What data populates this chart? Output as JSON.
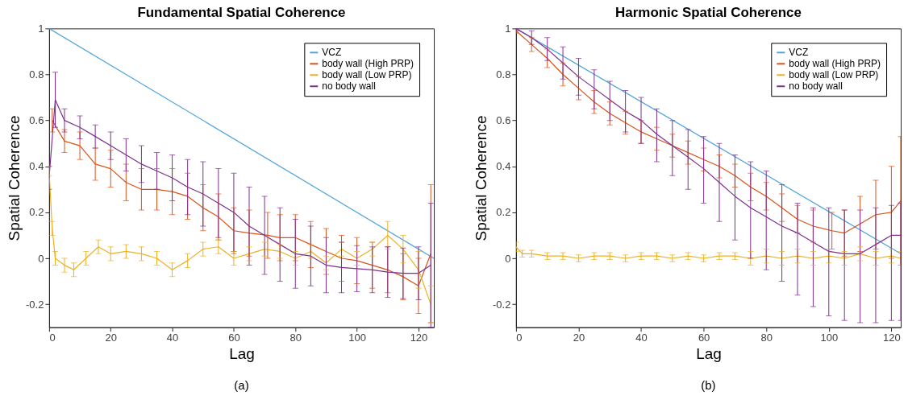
{
  "chart_data": [
    {
      "type": "line",
      "title": "Fundamental Spatial Coherence",
      "xlabel": "Lag",
      "ylabel": "Spatial Coherence",
      "xlim": [
        0,
        125
      ],
      "xticks": [
        0,
        20,
        40,
        60,
        80,
        100,
        120
      ],
      "ylim": [
        -0.3,
        1
      ],
      "yticks": [
        -0.2,
        0,
        0.2,
        0.4,
        0.6,
        0.8,
        1
      ],
      "grid": false,
      "legend": "top right",
      "annotations": [
        "(a)"
      ],
      "series": [
        {
          "name": "VCZ",
          "color": "#4da3db",
          "x": [
            0,
            125
          ],
          "values": [
            1,
            0
          ]
        },
        {
          "name": "body wall (High PRP)",
          "color": "#d95319",
          "x": [
            1,
            5,
            10,
            15,
            20,
            25,
            30,
            35,
            40,
            45,
            50,
            55,
            60,
            65,
            71,
            75,
            80,
            85,
            90,
            95,
            100,
            105,
            110,
            115,
            120,
            124
          ],
          "values": [
            0.6,
            0.51,
            0.49,
            0.41,
            0.39,
            0.33,
            0.3,
            0.3,
            0.29,
            0.27,
            0.22,
            0.18,
            0.12,
            0.11,
            0.1,
            0.09,
            0.09,
            0.06,
            0.03,
            0.0,
            -0.01,
            -0.03,
            -0.05,
            -0.08,
            -0.12,
            0.02
          ],
          "errors": [
            0.05,
            0.05,
            0.06,
            0.07,
            0.08,
            0.08,
            0.09,
            0.09,
            0.1,
            0.1,
            0.1,
            0.1,
            0.1,
            0.1,
            0.1,
            0.1,
            0.1,
            0.1,
            0.1,
            0.1,
            0.1,
            0.1,
            0.1,
            0.1,
            0.12,
            0.3
          ]
        },
        {
          "name": "body wall (Low PRP)",
          "color": "#edb120",
          "x": [
            0,
            1,
            2,
            5,
            8,
            12,
            16,
            20,
            25,
            30,
            35,
            40,
            45,
            50,
            55,
            60,
            65,
            70,
            75,
            80,
            85,
            90,
            95,
            100,
            105,
            110,
            115,
            120,
            124
          ],
          "values": [
            0.38,
            0.13,
            0.0,
            -0.03,
            -0.05,
            0.0,
            0.05,
            0.02,
            0.03,
            0.02,
            0.0,
            -0.05,
            -0.01,
            0.04,
            0.05,
            0.0,
            0.02,
            0.04,
            0.03,
            0.0,
            0.03,
            -0.02,
            0.04,
            0.0,
            0.04,
            0.1,
            0.04,
            -0.05,
            -0.2
          ],
          "errors": [
            0.02,
            0.03,
            0.03,
            0.03,
            0.03,
            0.03,
            0.03,
            0.03,
            0.03,
            0.03,
            0.03,
            0.03,
            0.03,
            0.03,
            0.03,
            0.03,
            0.03,
            0.03,
            0.03,
            0.03,
            0.03,
            0.03,
            0.03,
            0.03,
            0.03,
            0.06,
            0.06,
            0.08,
            0.08
          ]
        },
        {
          "name": "no body wall",
          "color": "#7e2f8e",
          "x": [
            0,
            2,
            5,
            10,
            15,
            20,
            25,
            30,
            35,
            40,
            45,
            50,
            55,
            60,
            65,
            70,
            75,
            80,
            85,
            90,
            95,
            100,
            105,
            110,
            115,
            120,
            124
          ],
          "values": [
            0.35,
            0.69,
            0.6,
            0.57,
            0.53,
            0.49,
            0.45,
            0.41,
            0.38,
            0.35,
            0.31,
            0.28,
            0.24,
            0.2,
            0.14,
            0.1,
            0.06,
            0.02,
            0.01,
            -0.03,
            -0.04,
            -0.045,
            -0.05,
            -0.06,
            -0.065,
            -0.065,
            -0.03
          ],
          "errors": [
            0.05,
            0.12,
            0.05,
            0.05,
            0.05,
            0.06,
            0.07,
            0.08,
            0.08,
            0.1,
            0.12,
            0.14,
            0.15,
            0.17,
            0.17,
            0.17,
            0.16,
            0.15,
            0.13,
            0.12,
            0.11,
            0.1,
            0.1,
            0.11,
            0.11,
            0.115,
            0.27
          ]
        }
      ]
    },
    {
      "type": "line",
      "title": "Harmonic Spatial Coherence",
      "xlabel": "Lag",
      "ylabel": "Spatial Coherence",
      "xlim": [
        0,
        123
      ],
      "xticks": [
        0,
        20,
        40,
        60,
        80,
        100,
        120
      ],
      "ylim": [
        -0.3,
        1
      ],
      "yticks": [
        -0.2,
        0,
        0.2,
        0.4,
        0.6,
        0.8,
        1
      ],
      "grid": false,
      "legend": "top right",
      "annotations": [
        "(b)"
      ],
      "series": [
        {
          "name": "VCZ",
          "color": "#4da3db",
          "x": [
            0,
            123
          ],
          "values": [
            1,
            0.02
          ]
        },
        {
          "name": "body wall (High PRP)",
          "color": "#d95319",
          "x": [
            0,
            5,
            10,
            15,
            20,
            25,
            30,
            35,
            40,
            45,
            50,
            55,
            60,
            65,
            70,
            75,
            80,
            85,
            90,
            95,
            101,
            105,
            110,
            115,
            120,
            123
          ],
          "values": [
            0.99,
            0.93,
            0.87,
            0.8,
            0.74,
            0.68,
            0.63,
            0.59,
            0.55,
            0.52,
            0.49,
            0.46,
            0.43,
            0.4,
            0.36,
            0.31,
            0.27,
            0.22,
            0.17,
            0.14,
            0.12,
            0.11,
            0.15,
            0.19,
            0.2,
            0.25
          ],
          "errors": [
            0.01,
            0.03,
            0.04,
            0.05,
            0.05,
            0.05,
            0.05,
            0.05,
            0.05,
            0.05,
            0.05,
            0.05,
            0.05,
            0.05,
            0.05,
            0.06,
            0.06,
            0.06,
            0.06,
            0.07,
            0.08,
            0.1,
            0.12,
            0.15,
            0.2,
            0.28
          ]
        },
        {
          "name": "body wall (Low PRP)",
          "color": "#edb120",
          "x": [
            0,
            2,
            5,
            10,
            15,
            20,
            25,
            30,
            35,
            40,
            45,
            50,
            55,
            60,
            65,
            70,
            75,
            80,
            85,
            90,
            95,
            100,
            105,
            110,
            115,
            120,
            123
          ],
          "values": [
            0.05,
            0.02,
            0.02,
            0.01,
            0.01,
            0.0,
            0.01,
            0.01,
            0.0,
            0.01,
            0.01,
            0.0,
            0.01,
            0.0,
            0.01,
            0.01,
            0.0,
            0.01,
            0.0,
            0.01,
            0.0,
            0.01,
            0.0,
            0.02,
            0.0,
            0.01,
            0.0
          ],
          "errors": [
            0.02,
            0.015,
            0.015,
            0.015,
            0.015,
            0.015,
            0.015,
            0.015,
            0.015,
            0.015,
            0.015,
            0.015,
            0.015,
            0.015,
            0.015,
            0.015,
            0.03,
            0.03,
            0.03,
            0.03,
            0.03,
            0.03,
            0.03,
            0.03,
            0.03,
            0.03,
            0.03
          ]
        },
        {
          "name": "no body wall",
          "color": "#7e2f8e",
          "x": [
            0,
            5,
            10,
            15,
            20,
            25,
            30,
            35,
            40,
            45,
            50,
            55,
            60,
            65,
            70,
            75,
            80,
            85,
            90,
            95,
            100,
            105,
            110,
            115,
            120,
            123
          ],
          "values": [
            1.0,
            0.96,
            0.91,
            0.85,
            0.79,
            0.74,
            0.69,
            0.64,
            0.6,
            0.54,
            0.49,
            0.44,
            0.39,
            0.33,
            0.27,
            0.22,
            0.18,
            0.14,
            0.11,
            0.07,
            0.03,
            0.02,
            0.02,
            0.06,
            0.1,
            0.1
          ],
          "errors": [
            [
              0.99,
              1.0
            ],
            [
              0.93,
              0.99
            ],
            [
              0.86,
              0.96
            ],
            [
              0.78,
              0.92
            ],
            [
              0.71,
              0.87
            ],
            [
              0.65,
              0.82
            ],
            [
              0.6,
              0.77
            ],
            [
              0.55,
              0.73
            ],
            [
              0.5,
              0.7
            ],
            [
              0.42,
              0.65
            ],
            [
              0.36,
              0.6
            ],
            [
              0.3,
              0.56
            ],
            [
              0.24,
              0.53
            ],
            [
              0.16,
              0.5
            ],
            [
              0.08,
              0.45
            ],
            [
              0.0,
              0.42
            ],
            [
              -0.05,
              0.38
            ],
            [
              -0.1,
              0.32
            ],
            [
              -0.16,
              0.24
            ],
            [
              -0.21,
              0.22
            ],
            [
              -0.25,
              0.22
            ],
            [
              -0.27,
              0.21
            ],
            [
              -0.28,
              0.21
            ],
            [
              -0.28,
              0.22
            ],
            [
              -0.27,
              0.23
            ],
            [
              -0.27,
              0.24
            ]
          ]
        }
      ]
    }
  ]
}
